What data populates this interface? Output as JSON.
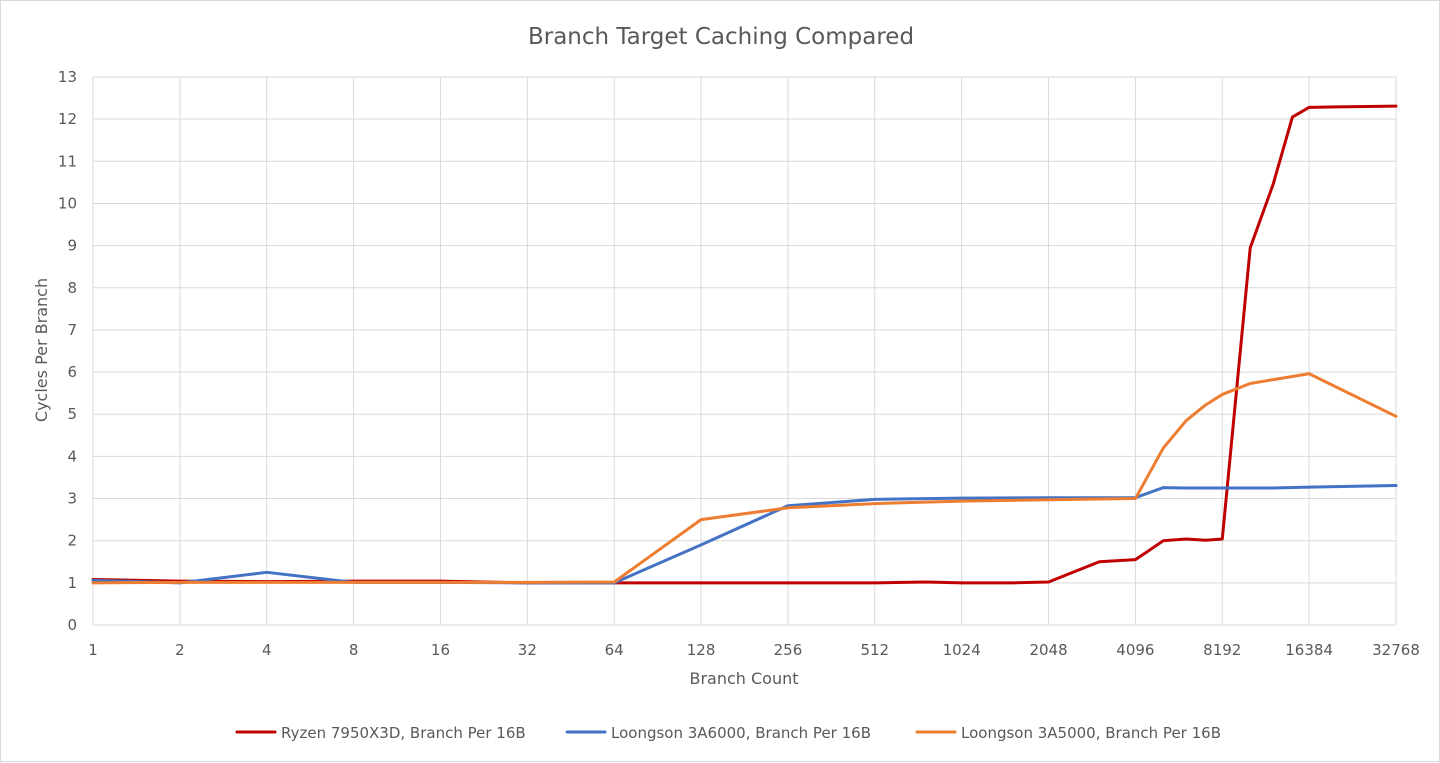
{
  "chart_data": {
    "type": "line",
    "title": "Branch Target Caching Compared",
    "xlabel": "Branch Count",
    "ylabel": "Cycles Per Branch",
    "x_scale": "log2",
    "x_ticks": [
      1,
      2,
      4,
      8,
      16,
      32,
      64,
      128,
      256,
      512,
      1024,
      2048,
      4096,
      8192,
      16384,
      32768
    ],
    "xlim": [
      1,
      32768
    ],
    "ylim": [
      0,
      13
    ],
    "y_ticks": [
      0,
      1,
      2,
      3,
      4,
      5,
      6,
      7,
      8,
      9,
      10,
      11,
      12,
      13
    ],
    "grid": true,
    "legend_position": "bottom",
    "series": [
      {
        "name": "Ryzen 7950X3D, Branch Per 16B",
        "color": "#c00000",
        "points": [
          [
            1,
            1.08
          ],
          [
            2,
            1.04
          ],
          [
            4,
            1.03
          ],
          [
            8,
            1.04
          ],
          [
            16,
            1.04
          ],
          [
            32,
            1.0
          ],
          [
            64,
            1.0
          ],
          [
            128,
            1.0
          ],
          [
            256,
            1.0
          ],
          [
            512,
            1.0
          ],
          [
            768,
            1.02
          ],
          [
            1024,
            1.0
          ],
          [
            1536,
            1.0
          ],
          [
            2048,
            1.02
          ],
          [
            3072,
            1.5
          ],
          [
            4096,
            1.55
          ],
          [
            5120,
            2.0
          ],
          [
            6144,
            2.04
          ],
          [
            7168,
            2.01
          ],
          [
            8192,
            2.04
          ],
          [
            10240,
            8.95
          ],
          [
            12288,
            10.45
          ],
          [
            14336,
            12.05
          ],
          [
            16384,
            12.28
          ],
          [
            20480,
            12.29
          ],
          [
            32768,
            12.31
          ]
        ]
      },
      {
        "name": "Loongson 3A6000, Branch Per 16B",
        "color": "#4472c4",
        "points": [
          [
            1,
            1.06
          ],
          [
            2,
            1.0
          ],
          [
            4,
            1.25
          ],
          [
            8,
            1.01
          ],
          [
            16,
            1.01
          ],
          [
            32,
            1.0
          ],
          [
            64,
            1.0
          ],
          [
            128,
            1.9
          ],
          [
            256,
            2.83
          ],
          [
            512,
            2.98
          ],
          [
            1024,
            3.01
          ],
          [
            2048,
            3.02
          ],
          [
            4096,
            3.02
          ],
          [
            5120,
            3.26
          ],
          [
            6144,
            3.25
          ],
          [
            8192,
            3.25
          ],
          [
            12288,
            3.25
          ],
          [
            16384,
            3.27
          ],
          [
            32768,
            3.31
          ]
        ]
      },
      {
        "name": "Loongson 3A5000, Branch Per 16B",
        "color": "#ed7d31",
        "points": [
          [
            1,
            1.0
          ],
          [
            2,
            1.01
          ],
          [
            4,
            1.01
          ],
          [
            8,
            1.01
          ],
          [
            16,
            1.01
          ],
          [
            32,
            1.01
          ],
          [
            64,
            1.02
          ],
          [
            128,
            2.5
          ],
          [
            256,
            2.78
          ],
          [
            512,
            2.88
          ],
          [
            1024,
            2.94
          ],
          [
            2048,
            2.97
          ],
          [
            4096,
            3.0
          ],
          [
            5120,
            4.2
          ],
          [
            6144,
            4.85
          ],
          [
            7168,
            5.22
          ],
          [
            8192,
            5.47
          ],
          [
            10240,
            5.73
          ],
          [
            16384,
            5.96
          ],
          [
            32768,
            4.95
          ]
        ]
      }
    ]
  }
}
